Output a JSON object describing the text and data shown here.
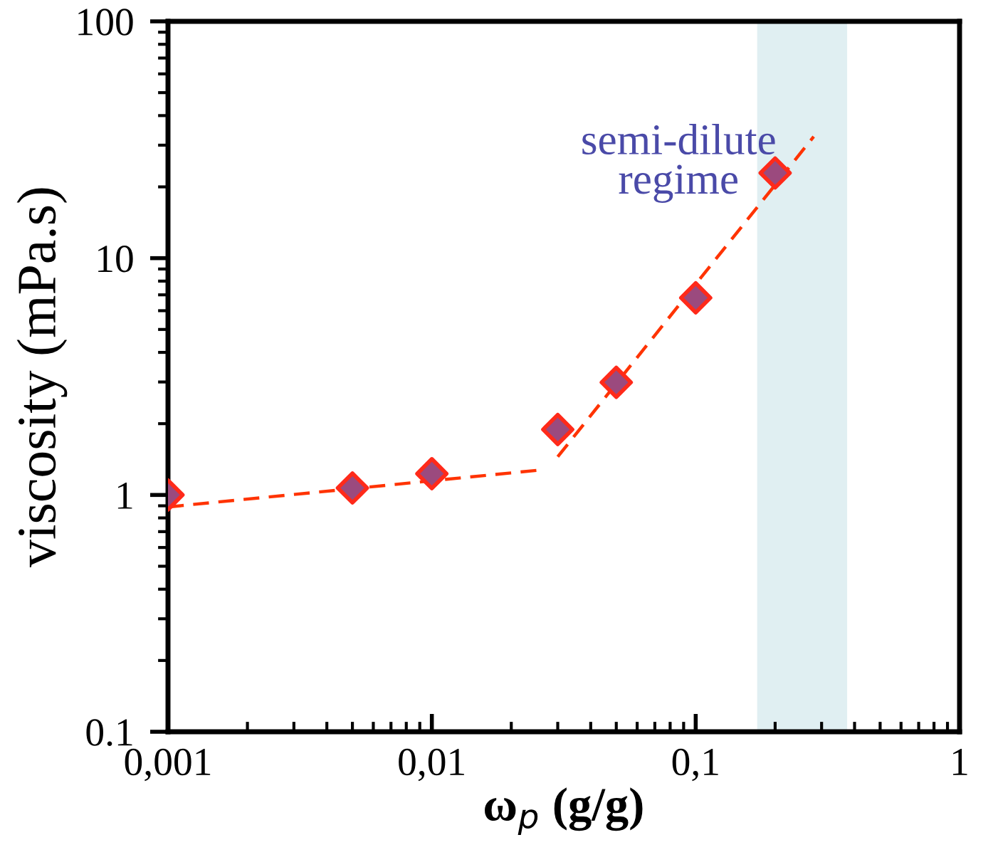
{
  "chart_data": {
    "type": "scatter",
    "xlabel": "ω$_{p}$ (g/g)",
    "ylabel": "viscosity (mPa.s)",
    "log": "xy",
    "xlim": [
      0.001,
      1
    ],
    "ylim": [
      0.1,
      100
    ],
    "xticks": [
      {
        "value": 0.001,
        "label": "0,001"
      },
      {
        "value": 0.01,
        "label": "0,01"
      },
      {
        "value": 0.1,
        "label": "0,1"
      },
      1
    ],
    "yticks": [
      0.1,
      1,
      10,
      100
    ],
    "grid": false,
    "legend": false,
    "series": [
      {
        "type": "line",
        "color": "#ff3300",
        "x": [
          0.001,
          0.025
        ],
        "values": [
          0.89,
          1.27
        ],
        "marker": "none",
        "line_style": "dashed"
      },
      {
        "type": "line",
        "color": "#ff3300",
        "x": [
          0.03,
          0.28
        ],
        "values": [
          1.45,
          32.6
        ],
        "marker": "none",
        "line_style": "dashed"
      },
      {
        "color": "#9b4a7e",
        "marker": "diamond",
        "x": [
          0.001,
          0.005,
          0.01,
          0.03,
          0.05,
          0.1,
          0.2
        ],
        "values": [
          1.0,
          1.07,
          1.23,
          1.89,
          2.99,
          6.8,
          22.9
        ]
      }
    ],
    "bands": [
      {
        "axis": "x",
        "from": 0.171,
        "to": 0.375,
        "color": "#e0eff2"
      }
    ],
    "annotations": [
      "semi-dilute\nregime"
    ]
  }
}
